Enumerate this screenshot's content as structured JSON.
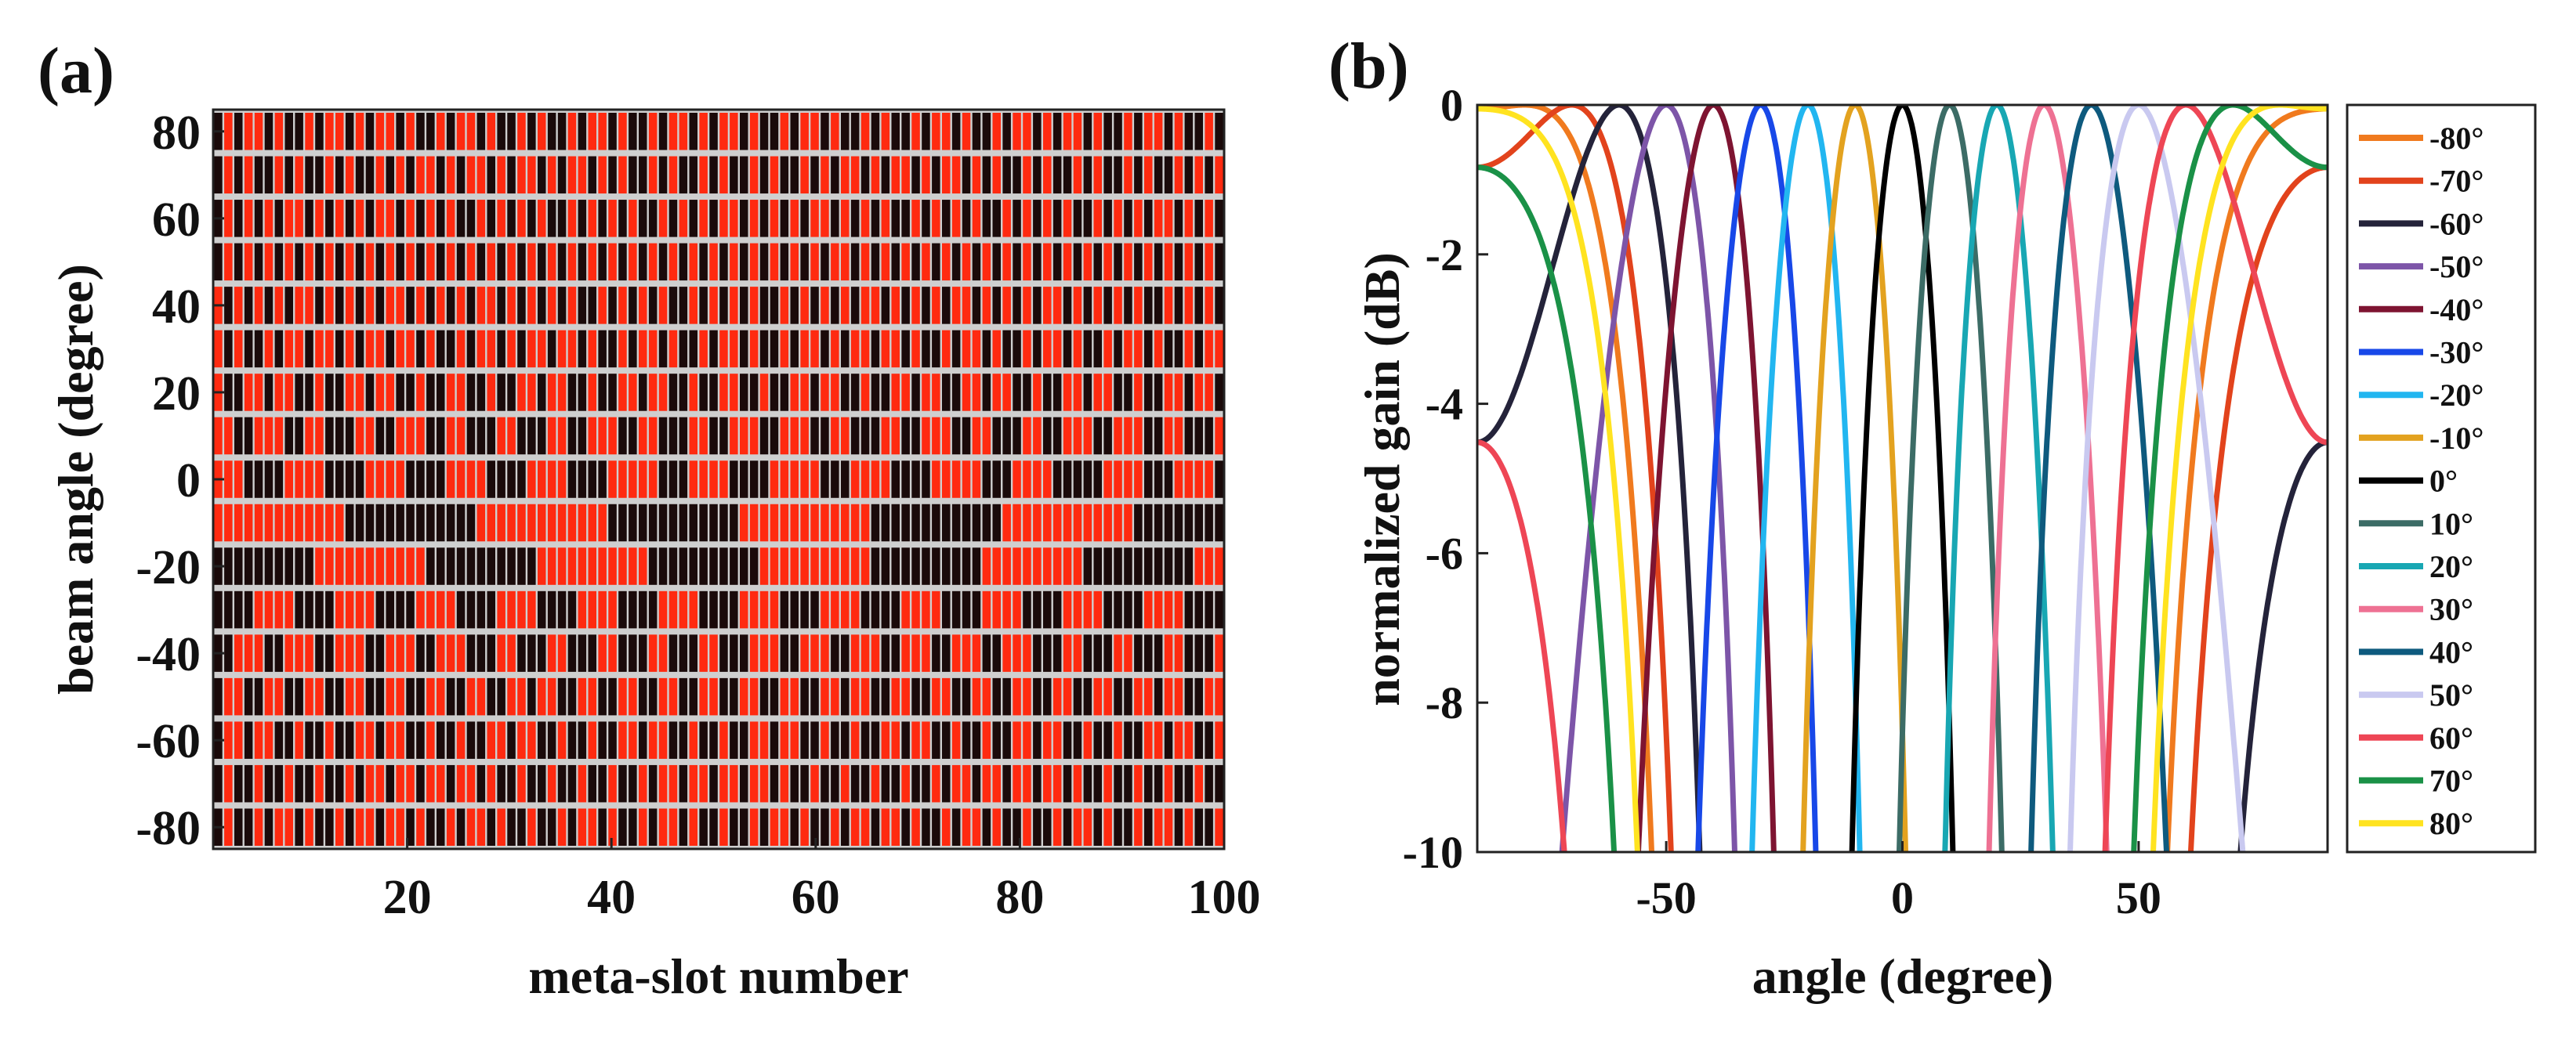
{
  "chart_data": [
    {
      "panel_label": "(a)",
      "type": "heatmap",
      "title": "",
      "xlabel": "meta-slot number",
      "ylabel": "beam angle (degree)",
      "xlim": [
        1,
        100
      ],
      "ylim": [
        -80,
        80
      ],
      "x_ticks": [
        20,
        40,
        60,
        80,
        100
      ],
      "y_ticks": [
        80,
        60,
        40,
        20,
        0,
        -20,
        -40,
        -60,
        -80
      ],
      "row_angles": [
        80,
        70,
        60,
        50,
        40,
        30,
        20,
        10,
        0,
        -10,
        -20,
        -30,
        -40,
        -50,
        -60,
        -70,
        -80
      ],
      "num_slots": 100,
      "colors": {
        "state_0": "#1a0a0a",
        "state_1": "#ff2a10",
        "grid": "#cfcfcf"
      }
    },
    {
      "panel_label": "(b)",
      "type": "line",
      "title": "",
      "xlabel": "angle (degree)",
      "ylabel": "normalized gain (dB)",
      "xlim": [
        -90,
        90
      ],
      "ylim": [
        -10,
        0
      ],
      "x_ticks": [
        -50,
        0,
        50
      ],
      "y_ticks": [
        0,
        -2,
        -4,
        -6,
        -8,
        -10
      ],
      "grid": false,
      "legend_position": "right",
      "series": [
        {
          "name": "-80°",
          "steer": -80,
          "color": "#f07a1e"
        },
        {
          "name": "-70°",
          "steer": -70,
          "color": "#e2431c"
        },
        {
          "name": "-60°",
          "steer": -60,
          "color": "#24233a"
        },
        {
          "name": "-50°",
          "steer": -50,
          "color": "#7d55a8"
        },
        {
          "name": "-40°",
          "steer": -40,
          "color": "#7e1431"
        },
        {
          "name": "-30°",
          "steer": -30,
          "color": "#1848e8"
        },
        {
          "name": "-20°",
          "steer": -20,
          "color": "#22b6f0"
        },
        {
          "name": "-10°",
          "steer": -10,
          "color": "#e3a21f"
        },
        {
          "name": "0°",
          "steer": 0,
          "color": "#000000"
        },
        {
          "name": "10°",
          "steer": 10,
          "color": "#3c6c66"
        },
        {
          "name": "20°",
          "steer": 20,
          "color": "#18a7b3"
        },
        {
          "name": "30°",
          "steer": 30,
          "color": "#ee7193"
        },
        {
          "name": "40°",
          "steer": 40,
          "color": "#0e5a7e"
        },
        {
          "name": "50°",
          "steer": 50,
          "color": "#c9c9f0"
        },
        {
          "name": "60°",
          "steer": 60,
          "color": "#ee4655"
        },
        {
          "name": "70°",
          "steer": 70,
          "color": "#1a9147"
        },
        {
          "name": "80°",
          "steer": 80,
          "color": "#ffe320"
        }
      ]
    }
  ]
}
